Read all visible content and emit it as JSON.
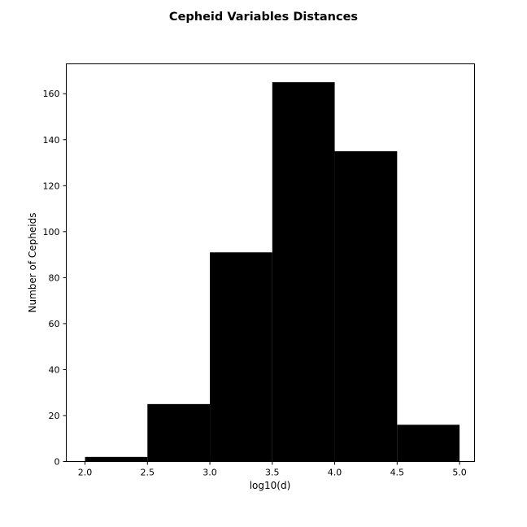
{
  "chart_data": {
    "type": "bar",
    "subtype": "histogram",
    "title": "Cepheid Variables Distances",
    "xlabel": "log10(d)",
    "ylabel": "Number of Cepheids",
    "bins": [
      {
        "start": 2.0,
        "end": 2.5,
        "count": 2
      },
      {
        "start": 2.5,
        "end": 3.0,
        "count": 25
      },
      {
        "start": 3.0,
        "end": 3.5,
        "count": 91
      },
      {
        "start": 3.5,
        "end": 4.0,
        "count": 165
      },
      {
        "start": 4.0,
        "end": 4.5,
        "count": 135
      },
      {
        "start": 4.5,
        "end": 5.0,
        "count": 16
      }
    ],
    "xlim": [
      1.85,
      5.12
    ],
    "ylim": [
      0,
      173
    ],
    "xticks": [
      2.0,
      2.5,
      3.0,
      3.5,
      4.0,
      4.5,
      5.0
    ],
    "xtick_labels": [
      "2.0",
      "2.5",
      "3.0",
      "3.5",
      "4.0",
      "4.5",
      "5.0"
    ],
    "yticks": [
      0,
      20,
      40,
      60,
      80,
      100,
      120,
      140,
      160
    ],
    "ytick_labels": [
      "0",
      "20",
      "40",
      "60",
      "80",
      "100",
      "120",
      "140",
      "160"
    ],
    "bar_color": "#000000",
    "grid": false,
    "legend": "none"
  }
}
